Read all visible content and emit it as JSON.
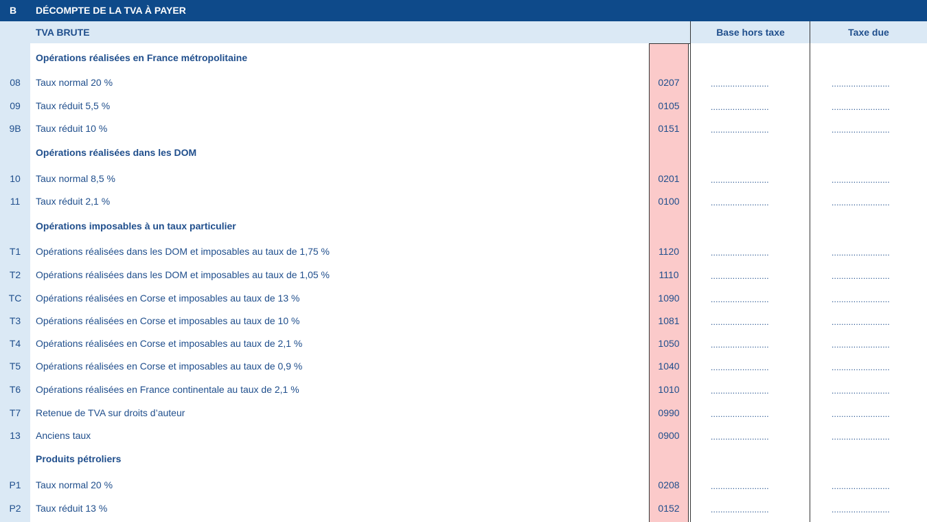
{
  "header": {
    "section_letter": "B",
    "section_title": "DÉCOMPTE DE LA TVA À PAYER",
    "subtitle": "TVA BRUTE",
    "col_base": "Base hors taxe",
    "col_tax": "Taxe due"
  },
  "dots": "........................",
  "rows": [
    {
      "type": "section",
      "label": "Opérations réalisées en France métropolitaine"
    },
    {
      "type": "line",
      "num": "08",
      "label": "Taux normal 20 %",
      "code": "0207"
    },
    {
      "type": "line",
      "num": "09",
      "label": "Taux réduit 5,5 %",
      "code": "0105"
    },
    {
      "type": "line",
      "num": "9B",
      "label": "Taux réduit 10 %",
      "code": "0151"
    },
    {
      "type": "section",
      "label": "Opérations réalisées dans les DOM"
    },
    {
      "type": "line",
      "num": "10",
      "label": "Taux normal 8,5 %",
      "code": "0201"
    },
    {
      "type": "line",
      "num": "11",
      "label": "Taux réduit 2,1 %",
      "code": "0100"
    },
    {
      "type": "section",
      "label": "Opérations imposables à un taux particulier"
    },
    {
      "type": "line",
      "num": "T1",
      "label": "Opérations réalisées dans les DOM et imposables au taux de 1,75 %",
      "code": "1120"
    },
    {
      "type": "line",
      "num": "T2",
      "label": "Opérations réalisées dans les DOM et imposables au taux de 1,05 %",
      "code": "1110"
    },
    {
      "type": "line",
      "num": "TC",
      "label": "Opérations réalisées en Corse et imposables au taux de 13 %",
      "code": "1090"
    },
    {
      "type": "line",
      "num": "T3",
      "label": "Opérations réalisées en Corse et imposables au taux de 10 %",
      "code": "1081"
    },
    {
      "type": "line",
      "num": "T4",
      "label": "Opérations réalisées en Corse et imposables au taux de 2,1 %",
      "code": "1050"
    },
    {
      "type": "line",
      "num": "T5",
      "label": "Opérations réalisées en Corse et imposables au taux de 0,9 %",
      "code": "1040"
    },
    {
      "type": "line",
      "num": "T6",
      "label": "Opérations réalisées en France continentale au taux de 2,1 %",
      "code": "1010"
    },
    {
      "type": "line",
      "num": "T7",
      "label": "Retenue de TVA sur droits d’auteur",
      "code": "0990"
    },
    {
      "type": "line",
      "num": "13",
      "label": "Anciens taux",
      "code": "0900"
    },
    {
      "type": "section",
      "label": "Produits pétroliers"
    },
    {
      "type": "line",
      "num": "P1",
      "label": "Taux normal 20 %",
      "code": "0208"
    },
    {
      "type": "line",
      "num": "P2",
      "label": "Taux réduit 13 %",
      "code": "0152"
    }
  ]
}
